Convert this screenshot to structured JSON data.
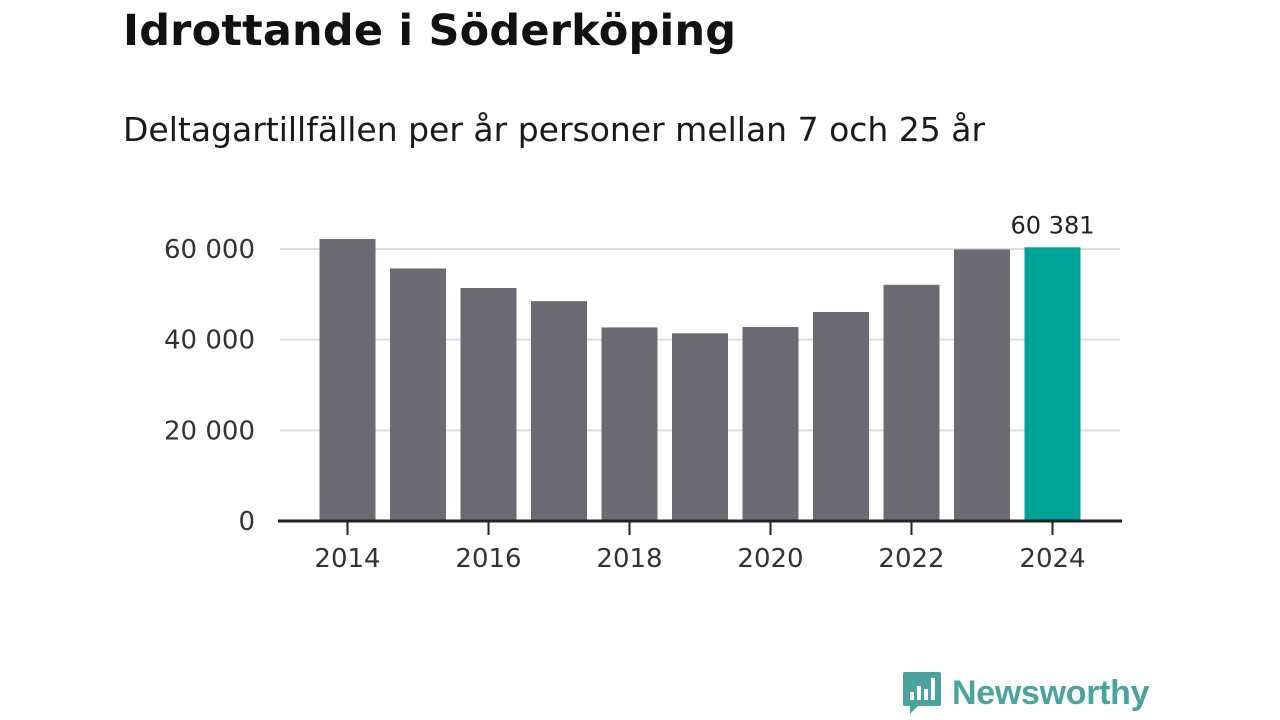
{
  "colors": {
    "bar": "#6c6b73",
    "highlight": "#00a398",
    "grid": "#dddddd",
    "axis": "#222222",
    "brand": "#4aa39d"
  },
  "brand": {
    "name": "Newsworthy",
    "icon": "newsworthy-logo-icon"
  },
  "chart_data": {
    "type": "bar",
    "title": "Idrottande i Söderköping",
    "subtitle": "Deltagartillfällen per år personer mellan 7 och 25 år",
    "categories": [
      "2014",
      "2015",
      "2016",
      "2017",
      "2018",
      "2019",
      "2020",
      "2021",
      "2022",
      "2023",
      "2024"
    ],
    "values": [
      62200,
      55700,
      51400,
      48500,
      42700,
      41400,
      42800,
      46100,
      52100,
      59900,
      60381
    ],
    "highlight_index": 10,
    "data_labels": [
      {
        "index": 10,
        "text": "60 381"
      }
    ],
    "ylim": [
      0,
      60000
    ],
    "yticks": [
      {
        "value": 0,
        "label": "0"
      },
      {
        "value": 20000,
        "label": "20 000"
      },
      {
        "value": 40000,
        "label": "40 000"
      },
      {
        "value": 60000,
        "label": "60 000"
      }
    ],
    "xticks": [
      {
        "index": 0,
        "label": "2014"
      },
      {
        "index": 2,
        "label": "2016"
      },
      {
        "index": 4,
        "label": "2018"
      },
      {
        "index": 6,
        "label": "2020"
      },
      {
        "index": 8,
        "label": "2022"
      },
      {
        "index": 10,
        "label": "2024"
      }
    ],
    "grid": true,
    "xlabel": "",
    "ylabel": ""
  }
}
